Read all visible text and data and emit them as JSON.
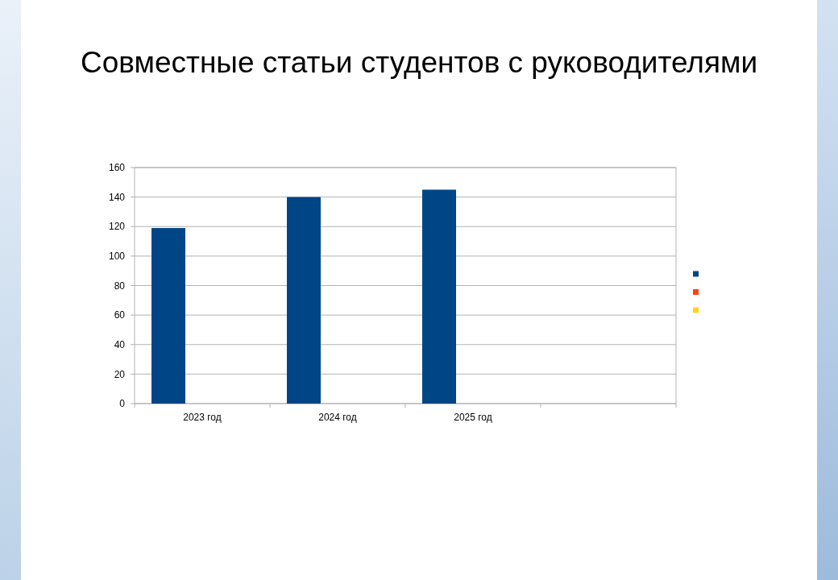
{
  "chart_data": {
    "type": "bar",
    "title": "Совместные статьи студентов с руководителями",
    "categories": [
      "2023 год",
      "2024 год",
      "2025 год",
      null
    ],
    "series": [
      {
        "color": "#004586",
        "values": [
          119,
          140,
          145,
          null
        ]
      },
      {
        "color": "#ff420e",
        "values": [
          null,
          null,
          null,
          null
        ]
      },
      {
        "color": "#ffd320",
        "values": [
          null,
          null,
          null,
          null
        ]
      }
    ],
    "ylim": [
      0,
      160
    ],
    "yticks": [
      0,
      20,
      40,
      60,
      80,
      100,
      120,
      140,
      160
    ],
    "grid": "y"
  }
}
